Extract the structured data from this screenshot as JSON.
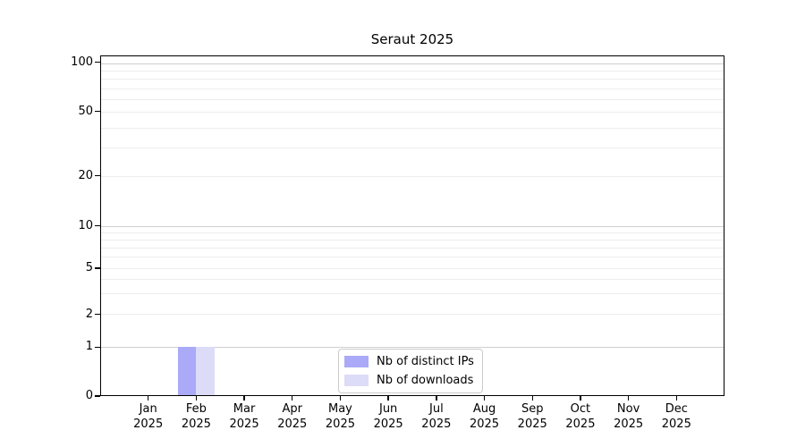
{
  "chart_data": {
    "type": "bar",
    "title": "Seraut 2025",
    "categories": [
      "Jan",
      "Feb",
      "Mar",
      "Apr",
      "May",
      "Jun",
      "Jul",
      "Aug",
      "Sep",
      "Oct",
      "Nov",
      "Dec"
    ],
    "x_tick_year": "2025",
    "series": [
      {
        "name": "Nb of distinct IPs",
        "color": "#aaaaf8",
        "values": [
          0,
          1,
          0,
          0,
          0,
          0,
          0,
          0,
          0,
          0,
          0,
          0
        ]
      },
      {
        "name": "Nb of downloads",
        "color": "#dcdcf8",
        "values": [
          0,
          1,
          0,
          0,
          0,
          0,
          0,
          0,
          0,
          0,
          0,
          0
        ]
      }
    ],
    "y_axis": {
      "scale": "symlog",
      "labeled_ticks": [
        100,
        50,
        20,
        10,
        5,
        2,
        1,
        0
      ],
      "decade_gridlines": [
        1,
        10,
        100
      ],
      "minor_gridlines": [
        2,
        3,
        4,
        5,
        6,
        7,
        8,
        9,
        20,
        30,
        40,
        50,
        60,
        70,
        80,
        90
      ],
      "ylim": [
        0,
        110
      ]
    },
    "legend": {
      "position": "lower center",
      "entries": [
        "Nb of distinct IPs",
        "Nb of downloads"
      ]
    },
    "grid": "on"
  },
  "colors": {
    "decade_grid": "#cfcfcf",
    "minor_grid": "#ededed",
    "spine": "#000000",
    "text": "#000000",
    "legend_border": "#cccccc",
    "background": "#ffffff"
  }
}
